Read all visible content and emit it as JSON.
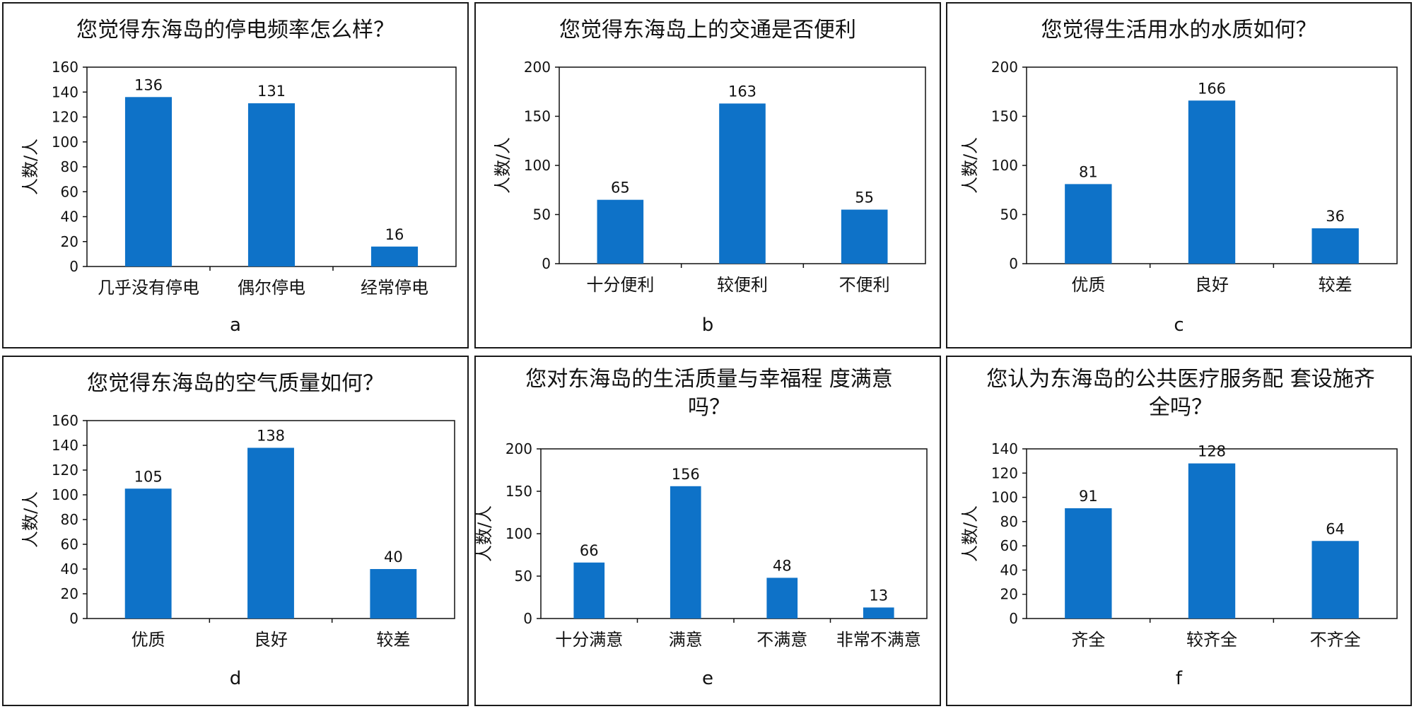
{
  "chart_data": [
    {
      "type": "bar",
      "title": "您觉得东海岛的停电频率怎么样？",
      "ylabel": "人数/人",
      "categories": [
        "几乎没有停电",
        "偶尔停电",
        "经常停电"
      ],
      "values": [
        136,
        131,
        16
      ],
      "ylim": [
        0,
        160
      ],
      "yticks": [
        0,
        20,
        40,
        60,
        80,
        100,
        120,
        140,
        160
      ],
      "label": "a",
      "grid": false
    },
    {
      "type": "bar",
      "title": "您觉得东海岛上的交通是否便利",
      "ylabel": "人数/人",
      "categories": [
        "十分便利",
        "较便利",
        "不便利"
      ],
      "values": [
        65,
        163,
        55
      ],
      "ylim": [
        0,
        200
      ],
      "yticks": [
        0,
        50,
        100,
        150,
        200
      ],
      "label": "b",
      "grid": false
    },
    {
      "type": "bar",
      "title": "您觉得生活用水的水质如何？",
      "ylabel": "人数/人",
      "categories": [
        "优质",
        "良好",
        "较差"
      ],
      "values": [
        81,
        166,
        36
      ],
      "ylim": [
        0,
        200
      ],
      "yticks": [
        0,
        50,
        100,
        150,
        200
      ],
      "label": "c",
      "grid": false
    },
    {
      "type": "bar",
      "title": "您觉得东海岛的空气质量如何？",
      "ylabel": "人数/人",
      "categories": [
        "优质",
        "良好",
        "较差"
      ],
      "values": [
        105,
        138,
        40
      ],
      "ylim": [
        0,
        160
      ],
      "yticks": [
        0,
        20,
        40,
        60,
        80,
        100,
        120,
        140,
        160
      ],
      "label": "d",
      "grid": false
    },
    {
      "type": "bar",
      "title": "您对东海岛的生活质量与幸福程 度满意吗？",
      "ylabel": "人数/人",
      "categories": [
        "十分满意",
        "满意",
        "不满意",
        "非常不满意"
      ],
      "values": [
        66,
        156,
        48,
        13
      ],
      "ylim": [
        0,
        200
      ],
      "yticks": [
        0,
        50,
        100,
        150,
        200
      ],
      "label": "e",
      "grid": false
    },
    {
      "type": "bar",
      "title": "您认为东海岛的公共医疗服务配 套设施齐全吗？",
      "ylabel": "人数/人",
      "categories": [
        "齐全",
        "较齐全",
        "不齐全"
      ],
      "values": [
        91,
        128,
        64
      ],
      "ylim": [
        0,
        140
      ],
      "yticks": [
        0,
        20,
        40,
        60,
        80,
        100,
        120,
        140
      ],
      "label": "f",
      "grid": false
    }
  ],
  "colors": {
    "bar": "#0e72c8",
    "axis": "#111111",
    "frame": "#1a1a1a"
  }
}
